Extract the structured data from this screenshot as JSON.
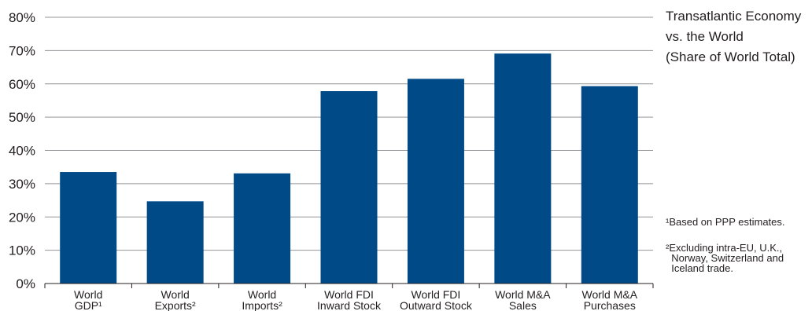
{
  "chart_data": {
    "type": "bar",
    "categories": [
      [
        "World",
        "GDP¹"
      ],
      [
        "World",
        "Exports²"
      ],
      [
        "World",
        "Imports²"
      ],
      [
        "World FDI",
        "Inward Stock"
      ],
      [
        "World FDI",
        "Outward Stock"
      ],
      [
        "World M&A",
        "Sales"
      ],
      [
        "World M&A",
        "Purchases"
      ]
    ],
    "values": [
      33.5,
      24.7,
      33.1,
      57.8,
      61.5,
      69.1,
      59.3
    ],
    "ylim": [
      0,
      80
    ],
    "yticks": [
      "0%",
      "10%",
      "20%",
      "30%",
      "40%",
      "50%",
      "60%",
      "70%",
      "80%"
    ],
    "title_lines": [
      "Transatlantic Economy",
      "vs. the World",
      "(Share of World Total)"
    ],
    "bar_color": "#004a87",
    "gridline_color": "#939598",
    "grid": true
  },
  "footnotes": {
    "note1": "¹Based on PPP estimates.",
    "note2": "²Excluding intra-EU, U.K.,\n  Norway, Switzerland and\n  Iceland trade."
  }
}
